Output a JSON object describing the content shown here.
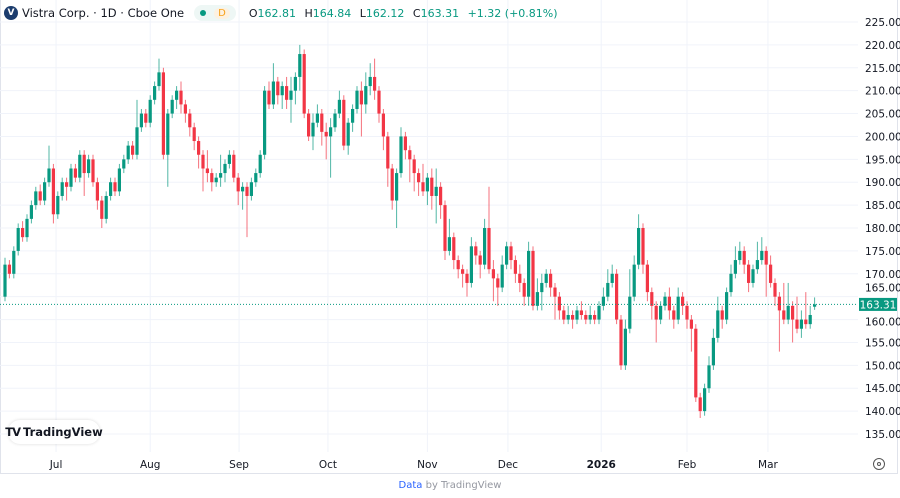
{
  "legend": {
    "symbol": "Vistra Corp. · 1D · Cboe One",
    "logo_letter": "V",
    "interval_badge": "D",
    "open_label": "O",
    "open": "162.81",
    "high_label": "H",
    "high": "164.84",
    "low_label": "L",
    "low": "162.12",
    "close_label": "C",
    "close": "163.31",
    "change": "+1.32 (+0.81%)"
  },
  "branding": {
    "logo_text": "TradingView",
    "footer_link": "Data",
    "footer_text": "by TradingView"
  },
  "icons": {
    "settings": "gear-icon",
    "logo": "tradingview-logo-icon"
  },
  "colors": {
    "up": "#089981",
    "down": "#f23645",
    "last_price": "#089981"
  },
  "chart_data": {
    "type": "candlestick",
    "title": "",
    "ylim": [
      132,
      227
    ],
    "y_ticks": [
      "225.00",
      "220.00",
      "215.00",
      "210.00",
      "205.00",
      "200.00",
      "195.00",
      "190.00",
      "185.00",
      "180.00",
      "175.00",
      "170.00",
      "165.00",
      "160.00",
      "155.00",
      "150.00",
      "145.00",
      "140.00",
      "135.00"
    ],
    "x_ticks": [
      {
        "label": "Jul",
        "bar": 11.6
      },
      {
        "label": "Aug",
        "bar": 33
      },
      {
        "label": "Sep",
        "bar": 53.2
      },
      {
        "label": "Oct",
        "bar": 73.4
      },
      {
        "label": "Nov",
        "bar": 96
      },
      {
        "label": "Dec",
        "bar": 114.3
      },
      {
        "label": "2026",
        "bar": 135.5
      },
      {
        "label": "Feb",
        "bar": 155
      },
      {
        "label": "Mar",
        "bar": 173.4
      }
    ],
    "last_price": "163.31",
    "grid": true,
    "candles_format": [
      "open",
      "high",
      "low",
      "close"
    ],
    "candles": [
      [
        165,
        173.5,
        164,
        172
      ],
      [
        172,
        173,
        169,
        170
      ],
      [
        170,
        176,
        169,
        175
      ],
      [
        175,
        181,
        174,
        180
      ],
      [
        180,
        181.5,
        177,
        178
      ],
      [
        178,
        183,
        177,
        182
      ],
      [
        182,
        186,
        181,
        185
      ],
      [
        185,
        189,
        184,
        188
      ],
      [
        188,
        189.5,
        185,
        186
      ],
      [
        186,
        191,
        185,
        190
      ],
      [
        190,
        198,
        189,
        193
      ],
      [
        193,
        194,
        181,
        183
      ],
      [
        183,
        188,
        182,
        187
      ],
      [
        187,
        191,
        186,
        190
      ],
      [
        190,
        191,
        186,
        189
      ],
      [
        189,
        194,
        188,
        193
      ],
      [
        193,
        194,
        190,
        191
      ],
      [
        191,
        197,
        190,
        196
      ],
      [
        196,
        197,
        187,
        192
      ],
      [
        192,
        196,
        191,
        195
      ],
      [
        195,
        196,
        189,
        190
      ],
      [
        190,
        191,
        184,
        186
      ],
      [
        186,
        187,
        180,
        182
      ],
      [
        182,
        188,
        181,
        187
      ],
      [
        187,
        191,
        186,
        190
      ],
      [
        190,
        191,
        187,
        188
      ],
      [
        188,
        194,
        187,
        193
      ],
      [
        193,
        196,
        192,
        195
      ],
      [
        195,
        199,
        194,
        198
      ],
      [
        198,
        199,
        195,
        196
      ],
      [
        196,
        208,
        195,
        202
      ],
      [
        202,
        206,
        201,
        205
      ],
      [
        205,
        206,
        202,
        203
      ],
      [
        203,
        209,
        202,
        208
      ],
      [
        208,
        212,
        207,
        211
      ],
      [
        211,
        217,
        210,
        214
      ],
      [
        214,
        215,
        195,
        196
      ],
      [
        196,
        206,
        189,
        205
      ],
      [
        205,
        209,
        204,
        208
      ],
      [
        208,
        211,
        206,
        210
      ],
      [
        210,
        212,
        205,
        207
      ],
      [
        207,
        208,
        203,
        205
      ],
      [
        205,
        206,
        200,
        202
      ],
      [
        202,
        203,
        197,
        199
      ],
      [
        199,
        200,
        193,
        196
      ],
      [
        196,
        197,
        188,
        193
      ],
      [
        193,
        197,
        190,
        192
      ],
      [
        192,
        193,
        188,
        190
      ],
      [
        190,
        192,
        189,
        191
      ],
      [
        191,
        196,
        189,
        192
      ],
      [
        192,
        195,
        190,
        194
      ],
      [
        194,
        197,
        193,
        196
      ],
      [
        196,
        197,
        190,
        191
      ],
      [
        191,
        192,
        185,
        188
      ],
      [
        188,
        190,
        184,
        189
      ],
      [
        189,
        190,
        178,
        187
      ],
      [
        187,
        191,
        186,
        190
      ],
      [
        190,
        193,
        189,
        192
      ],
      [
        192,
        197,
        191,
        196
      ],
      [
        196,
        211,
        195,
        210
      ],
      [
        210,
        212,
        206,
        207
      ],
      [
        207,
        216,
        206,
        212
      ],
      [
        212,
        213,
        207,
        209
      ],
      [
        209,
        212,
        206,
        211
      ],
      [
        211,
        213,
        206,
        208
      ],
      [
        208,
        213,
        203,
        210
      ],
      [
        210,
        214,
        207,
        213
      ],
      [
        213,
        220,
        210,
        218
      ],
      [
        218,
        219,
        204,
        205
      ],
      [
        205,
        206,
        199,
        200
      ],
      [
        200,
        205,
        197,
        203
      ],
      [
        203,
        207,
        202,
        205
      ],
      [
        205,
        206,
        198,
        201
      ],
      [
        201,
        203,
        195,
        200
      ],
      [
        200,
        204,
        191,
        202
      ],
      [
        202,
        206,
        201,
        205
      ],
      [
        205,
        210,
        204,
        208
      ],
      [
        208,
        209,
        197,
        198
      ],
      [
        198,
        204,
        196,
        203
      ],
      [
        203,
        207,
        201,
        206
      ],
      [
        206,
        211,
        205,
        210
      ],
      [
        210,
        212,
        200,
        207
      ],
      [
        207,
        214,
        205,
        211
      ],
      [
        211,
        216,
        209,
        213
      ],
      [
        213,
        217,
        208,
        210
      ],
      [
        210,
        211,
        203,
        205
      ],
      [
        205,
        206,
        197,
        200
      ],
      [
        200,
        201,
        189,
        193
      ],
      [
        193,
        194,
        184,
        186
      ],
      [
        186,
        193,
        180,
        192
      ],
      [
        192,
        202,
        191,
        200
      ],
      [
        200,
        201,
        195,
        197
      ],
      [
        197,
        198,
        190,
        195
      ],
      [
        195,
        196,
        188,
        192
      ],
      [
        192,
        193,
        187,
        190
      ],
      [
        190,
        194,
        187,
        188
      ],
      [
        188,
        192,
        185,
        191
      ],
      [
        191,
        193,
        184,
        187
      ],
      [
        187,
        193,
        181,
        189
      ],
      [
        189,
        190,
        182,
        185
      ],
      [
        185,
        186,
        173,
        175
      ],
      [
        175,
        182,
        174,
        178
      ],
      [
        178,
        179,
        171,
        173
      ],
      [
        173,
        174,
        169,
        171
      ],
      [
        171,
        172,
        167,
        170
      ],
      [
        170,
        171,
        165,
        168
      ],
      [
        168,
        178,
        167,
        176
      ],
      [
        176,
        177,
        172,
        174
      ],
      [
        174,
        175,
        169,
        172
      ],
      [
        172,
        182,
        171,
        180
      ],
      [
        180,
        189,
        170,
        171
      ],
      [
        171,
        173,
        164,
        169
      ],
      [
        169,
        170,
        163,
        167
      ],
      [
        167,
        174,
        166,
        172
      ],
      [
        172,
        177,
        171,
        176
      ],
      [
        176,
        177,
        171,
        173
      ],
      [
        173,
        174,
        168,
        170
      ],
      [
        170,
        172,
        166,
        168
      ],
      [
        168,
        169,
        163,
        165
      ],
      [
        165,
        177,
        163,
        175
      ],
      [
        175,
        176,
        162,
        163
      ],
      [
        163,
        169,
        162,
        166
      ],
      [
        166,
        170,
        162,
        168
      ],
      [
        168,
        171,
        167,
        170
      ],
      [
        170,
        171,
        165,
        167
      ],
      [
        167,
        168,
        160,
        165
      ],
      [
        165,
        166,
        160,
        162
      ],
      [
        162,
        163,
        159,
        160
      ],
      [
        160,
        163,
        159,
        161
      ],
      [
        161,
        162,
        158,
        160
      ],
      [
        160,
        163,
        159,
        162
      ],
      [
        162,
        164,
        160,
        161
      ],
      [
        161,
        162,
        159,
        160
      ],
      [
        160,
        163,
        159,
        161
      ],
      [
        161,
        162,
        159,
        160
      ],
      [
        160,
        164,
        159,
        163
      ],
      [
        163,
        167,
        162,
        165
      ],
      [
        165,
        171,
        164,
        168
      ],
      [
        168,
        172,
        167,
        170
      ],
      [
        170,
        171,
        159,
        160
      ],
      [
        160,
        161,
        149,
        150
      ],
      [
        150,
        160,
        149,
        158
      ],
      [
        158,
        171,
        157,
        165
      ],
      [
        165,
        174,
        164,
        172
      ],
      [
        172,
        183,
        171,
        180
      ],
      [
        180,
        181,
        170,
        172
      ],
      [
        172,
        173,
        164,
        166
      ],
      [
        166,
        167,
        160,
        163
      ],
      [
        163,
        164,
        155,
        160
      ],
      [
        160,
        164,
        159,
        163
      ],
      [
        163,
        166,
        162,
        165
      ],
      [
        165,
        167,
        160,
        162
      ],
      [
        162,
        163,
        158,
        160
      ],
      [
        160,
        167,
        159,
        165
      ],
      [
        165,
        166,
        161,
        163
      ],
      [
        163,
        164,
        158,
        160
      ],
      [
        160,
        161,
        153,
        158
      ],
      [
        158,
        159,
        142,
        143
      ],
      [
        143,
        144,
        138.5,
        140
      ],
      [
        140,
        146,
        139,
        145
      ],
      [
        145,
        152,
        144,
        150
      ],
      [
        150,
        158,
        149,
        156
      ],
      [
        156,
        165,
        155,
        162
      ],
      [
        162,
        163,
        158,
        160
      ],
      [
        160,
        167,
        159,
        166
      ],
      [
        166,
        172,
        165,
        170
      ],
      [
        170,
        176,
        169,
        173
      ],
      [
        173,
        177,
        172,
        175
      ],
      [
        175,
        176,
        170,
        172
      ],
      [
        172,
        173,
        166,
        168
      ],
      [
        168,
        172,
        167,
        171
      ],
      [
        171,
        177,
        170,
        173
      ],
      [
        173,
        178,
        172,
        175
      ],
      [
        175,
        176,
        165,
        172
      ],
      [
        172,
        174,
        167,
        168
      ],
      [
        168,
        169,
        163,
        165
      ],
      [
        165,
        166,
        153,
        162
      ],
      [
        162,
        168,
        159,
        160
      ],
      [
        160,
        168,
        159,
        163
      ],
      [
        163,
        164,
        155,
        160
      ],
      [
        160,
        165,
        157,
        158
      ],
      [
        158,
        162,
        156,
        160
      ],
      [
        160,
        166,
        158,
        159
      ],
      [
        159,
        163,
        158,
        161
      ],
      [
        162.81,
        164.84,
        162.12,
        163.31
      ]
    ]
  }
}
